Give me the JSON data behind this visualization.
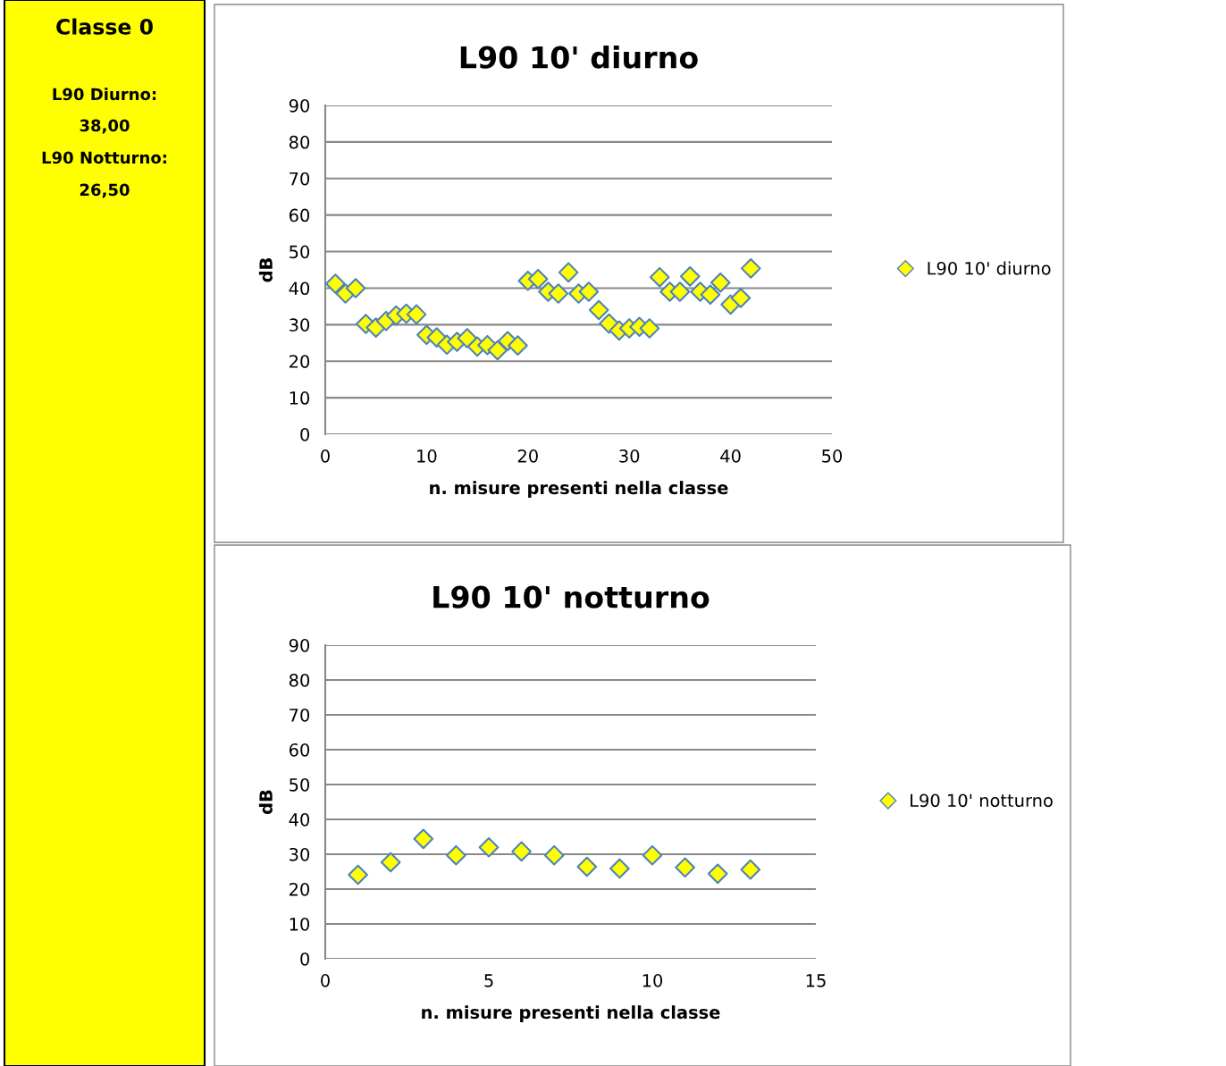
{
  "chart_data": [
    {
      "type": "other",
      "title": "Classe 0",
      "annotations": [
        "L90 Diurno:",
        "38,00",
        "L90 Notturno:",
        "26,50"
      ],
      "color": "#ffff00"
    },
    {
      "type": "scatter",
      "title": "L90 10' diurno",
      "xlabel": "n. misure presenti nella classe",
      "ylabel": "dB",
      "xlim": [
        0,
        50
      ],
      "xticks": [
        0,
        10,
        20,
        30,
        40,
        50
      ],
      "ylim": [
        0,
        90
      ],
      "yticks": [
        0,
        10,
        20,
        30,
        40,
        50,
        60,
        70,
        80,
        90
      ],
      "grid": "y",
      "legend": "right",
      "marker": "diamond",
      "x": [
        1,
        2,
        3,
        4,
        5,
        6,
        7,
        8,
        9,
        10,
        11,
        12,
        13,
        14,
        15,
        16,
        17,
        18,
        19,
        20,
        21,
        22,
        23,
        24,
        25,
        26,
        27,
        28,
        29,
        30,
        31,
        32,
        33,
        34,
        35,
        36,
        37,
        38,
        39,
        40,
        41,
        42
      ],
      "series": [
        {
          "name": "L90 10' diurno",
          "color": "#ffff00",
          "values": [
            41.2,
            38.5,
            40,
            30.2,
            29.2,
            31,
            32.5,
            33,
            32.8,
            27.2,
            26.5,
            24.5,
            25.3,
            26.3,
            24,
            24.4,
            23,
            25.5,
            24.3,
            42,
            42.5,
            39,
            38.5,
            44.3,
            38.5,
            39,
            34,
            30.3,
            28.4,
            29,
            29.4,
            29,
            43,
            39,
            39,
            43.2,
            39,
            38.2,
            41.5,
            35.5,
            37.3,
            45.4
          ]
        }
      ]
    },
    {
      "type": "scatter",
      "title": "L90 10' notturno",
      "xlabel": "n. misure presenti nella classe",
      "ylabel": "dB",
      "xlim": [
        0,
        15
      ],
      "xticks": [
        0,
        5,
        10,
        15
      ],
      "ylim": [
        0,
        90
      ],
      "yticks": [
        0,
        10,
        20,
        30,
        40,
        50,
        60,
        70,
        80,
        90
      ],
      "grid": "y",
      "legend": "right",
      "marker": "diamond",
      "x": [
        1,
        2,
        3,
        4,
        5,
        6,
        7,
        8,
        9,
        10,
        11,
        12,
        13
      ],
      "series": [
        {
          "name": "L90 10' notturno",
          "color": "#ffff00",
          "values": [
            24.1,
            27.7,
            34.4,
            29.7,
            32,
            30.8,
            29.7,
            26.4,
            25.9,
            29.7,
            26.2,
            24.4,
            25.6
          ]
        }
      ]
    }
  ]
}
